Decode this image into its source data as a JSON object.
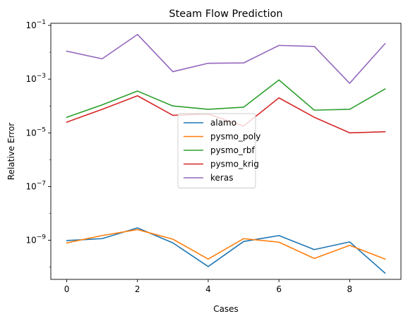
{
  "chart_data": {
    "type": "line",
    "title": "Steam Flow Prediction",
    "xlabel": "Cases",
    "ylabel": "Relative Error",
    "yscale": "log",
    "xlim": [
      -0.45,
      9.45
    ],
    "ylim": [
      3.5e-11,
      0.12
    ],
    "x": [
      0,
      1,
      2,
      3,
      4,
      5,
      6,
      7,
      8,
      9
    ],
    "xticks": [
      0,
      2,
      4,
      6,
      8
    ],
    "yticks": [
      {
        "base": "10",
        "exp": "−1",
        "value": 0.1
      },
      {
        "base": "10",
        "exp": "−3",
        "value": 0.001
      },
      {
        "base": "10",
        "exp": "−5",
        "value": 1e-05
      },
      {
        "base": "10",
        "exp": "−7",
        "value": 1e-07
      },
      {
        "base": "10",
        "exp": "−9",
        "value": 1e-09
      }
    ],
    "grid": false,
    "legend": "center",
    "series": [
      {
        "name": "alamo",
        "color": "#1f77b4",
        "values": [
          9.8e-10,
          1.15e-09,
          2.9e-09,
          8e-10,
          1.05e-10,
          9e-10,
          1.5e-09,
          4.5e-10,
          8.7e-10,
          6e-11
        ]
      },
      {
        "name": "pysmo_poly",
        "color": "#ff7f0e",
        "values": [
          8e-10,
          1.5e-09,
          2.5e-09,
          1.1e-09,
          2e-10,
          1.15e-09,
          8.5e-10,
          2.1e-10,
          6.5e-10,
          2e-10
        ]
      },
      {
        "name": "pysmo_rbf",
        "color": "#2ca02c",
        "values": [
          3.8e-05,
          0.00011,
          0.00036,
          0.0001,
          7.5e-05,
          9e-05,
          0.00093,
          7e-05,
          7.5e-05,
          0.00043
        ]
      },
      {
        "name": "pysmo_krig",
        "color": "#d62728",
        "values": [
          2.5e-05,
          7.5e-05,
          0.00024,
          4.5e-05,
          5e-05,
          1.8e-05,
          0.0002,
          3.8e-05,
          1e-05,
          1.1e-05
        ]
      },
      {
        "name": "keras",
        "color": "#9467bd",
        "values": [
          0.011,
          0.0057,
          0.046,
          0.0019,
          0.0039,
          0.004,
          0.018,
          0.0165,
          0.0007,
          0.021
        ]
      }
    ]
  }
}
